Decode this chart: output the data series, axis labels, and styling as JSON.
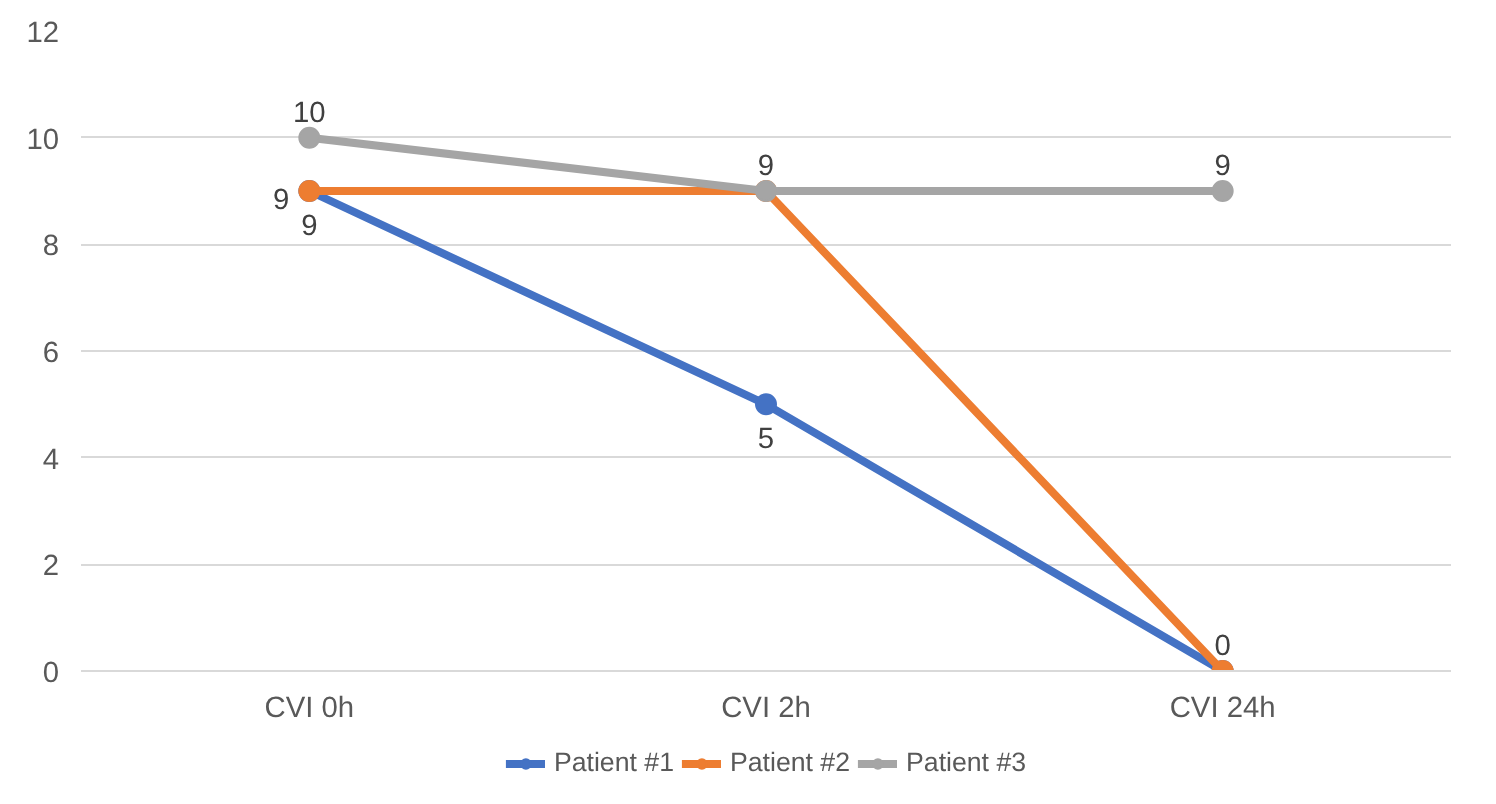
{
  "chart_data": {
    "type": "line",
    "categories": [
      "CVI 0h",
      "CVI 2h",
      "CVI 24h"
    ],
    "series": [
      {
        "name": "Patient #1",
        "color": "#4472c4",
        "values": [
          9,
          5,
          0
        ],
        "value_labels": [
          "9",
          "5",
          null
        ]
      },
      {
        "name": "Patient #2",
        "color": "#ed7d31",
        "values": [
          9,
          9,
          0
        ],
        "value_labels": [
          "9",
          null,
          "0"
        ]
      },
      {
        "name": "Patient #3",
        "color": "#a5a5a5",
        "values": [
          10,
          9,
          9
        ],
        "value_labels": [
          "10",
          "9",
          "9"
        ]
      }
    ],
    "ylim": [
      0,
      12
    ],
    "yticks": [
      0,
      2,
      4,
      6,
      8,
      10,
      12
    ],
    "grid": "y",
    "legend": "bottom",
    "marker": "circle",
    "line_style": "solid"
  }
}
